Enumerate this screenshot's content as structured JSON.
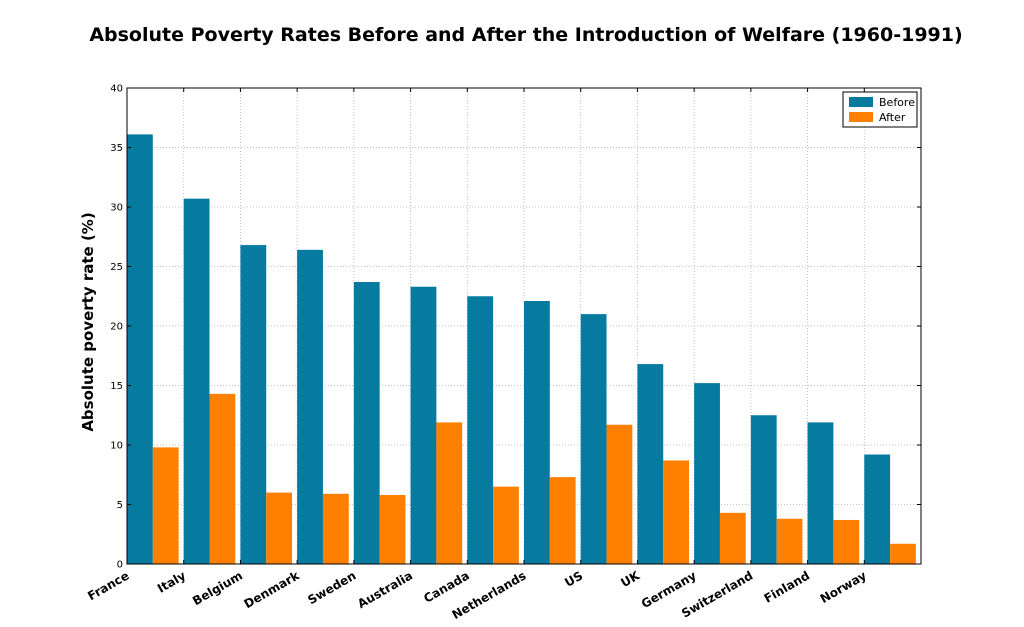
{
  "chart_data": {
    "type": "bar",
    "title": "Absolute Poverty Rates Before and After the Introduction of Welfare (1960-1991)",
    "xlabel": "",
    "ylabel": "Absolute poverty rate (%)",
    "ylim": [
      0,
      40
    ],
    "yticks": [
      "0",
      "5",
      "10",
      "15",
      "20",
      "25",
      "30",
      "35",
      "40"
    ],
    "grid": true,
    "legend_position": "top-right",
    "categories": [
      "France",
      "Italy",
      "Belgium",
      "Denmark",
      "Sweden",
      "Australia",
      "Canada",
      "Netherlands",
      "US",
      "UK",
      "Germany",
      "Switzerland",
      "Finland",
      "Norway"
    ],
    "series": [
      {
        "name": "Before",
        "color": "#077aa0",
        "values": [
          36.1,
          30.7,
          26.8,
          26.4,
          23.7,
          23.3,
          22.5,
          22.1,
          21.0,
          16.8,
          15.2,
          12.5,
          11.9,
          9.2
        ]
      },
      {
        "name": "After",
        "color": "#ff8000",
        "values": [
          9.8,
          14.3,
          6.0,
          5.9,
          5.8,
          11.9,
          6.5,
          7.3,
          11.7,
          8.7,
          4.3,
          3.8,
          3.7,
          1.7
        ]
      }
    ]
  }
}
